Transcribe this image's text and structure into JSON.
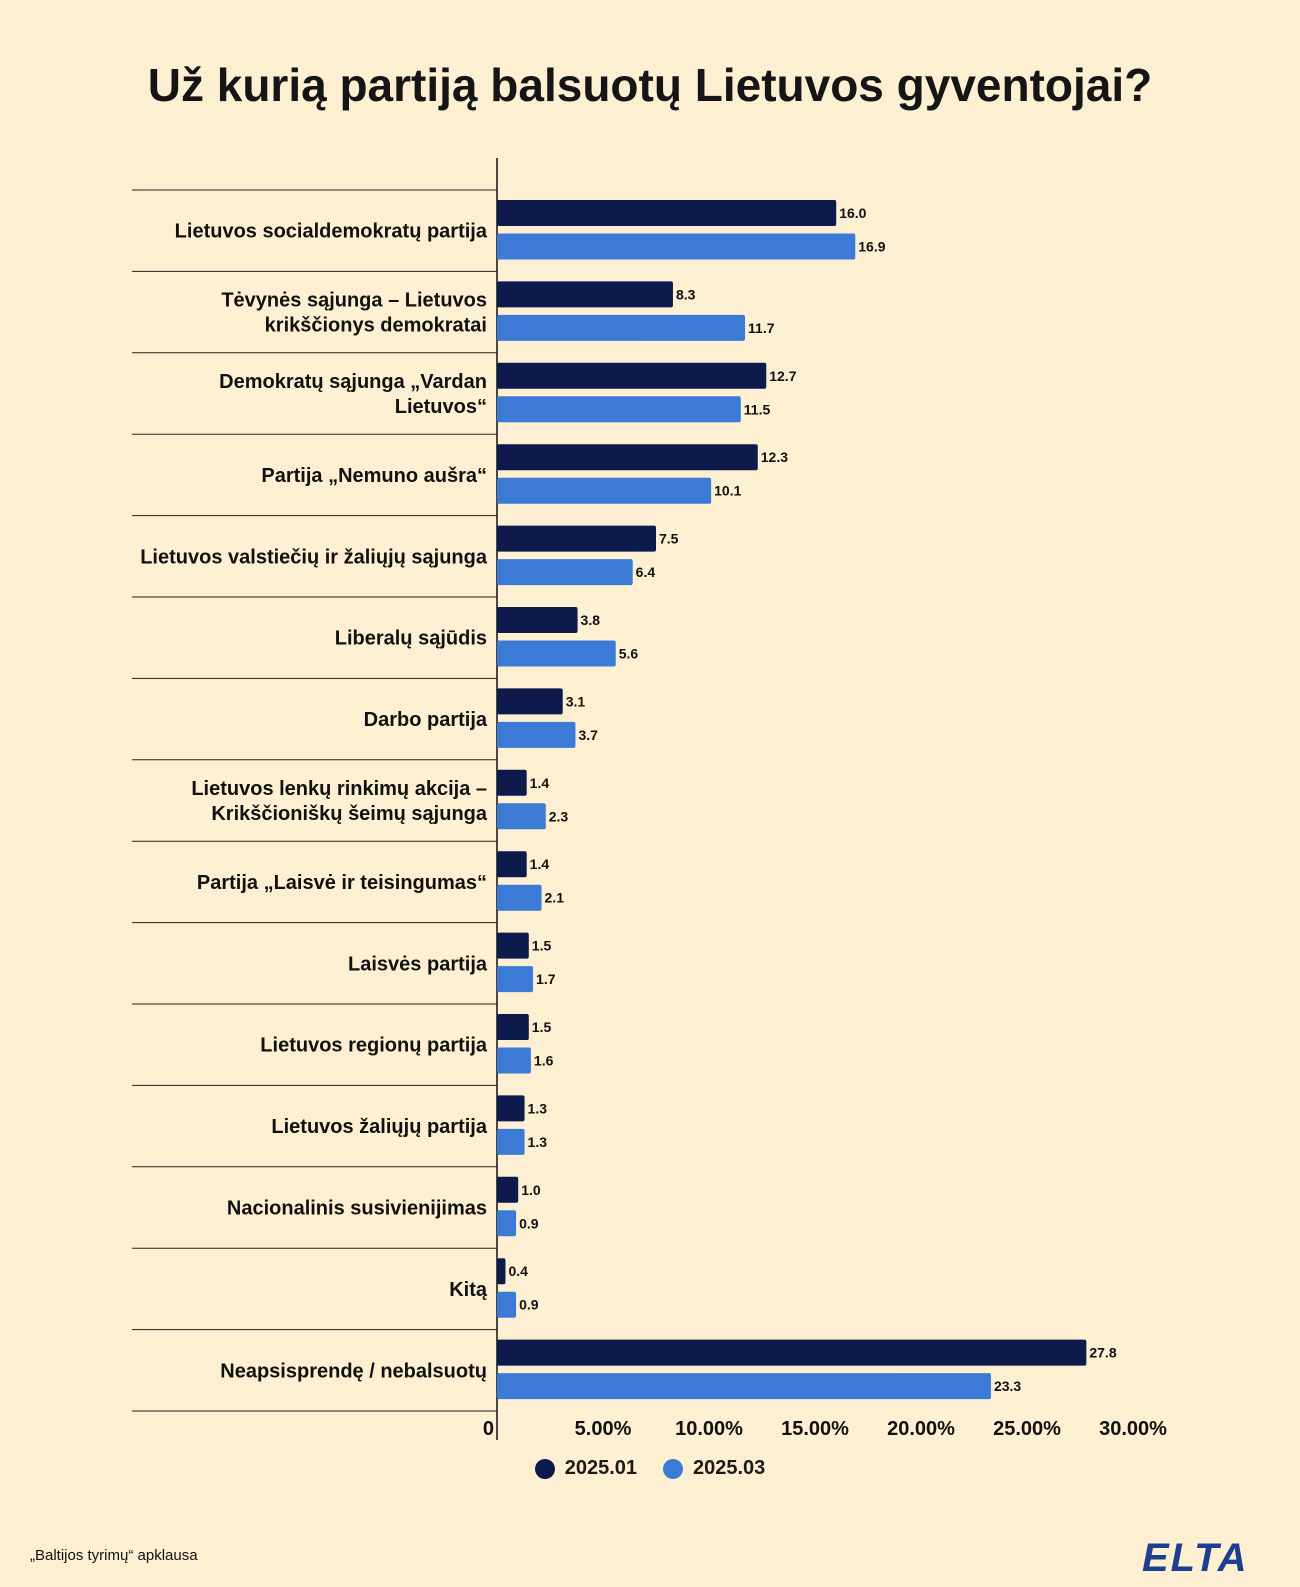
{
  "title": "Už kurią partiją balsuotų Lietuvos gyventojai?",
  "source_note": "„Baltijos tyrimų“ apklausa",
  "logo_text": "ELTA",
  "colors": {
    "series1": "#0d1a4c",
    "series2": "#3b7bd6",
    "background": "#fdefd2"
  },
  "chart_data": {
    "type": "bar",
    "orientation": "horizontal",
    "title": "Už kurią partiją balsuotų Lietuvos gyventojai?",
    "categories": [
      [
        "Lietuvos socialdemokratų partija"
      ],
      [
        "Tėvynės sąjunga – Lietuvos",
        "krikščionys demokratai"
      ],
      [
        "Demokratų sąjunga „Vardan",
        "Lietuvos“"
      ],
      [
        "Partija „Nemuno aušra“"
      ],
      [
        "Lietuvos valstiečių ir žaliųjų sąjunga"
      ],
      [
        "Liberalų sąjūdis"
      ],
      [
        "Darbo partija"
      ],
      [
        "Lietuvos lenkų rinkimų akcija –",
        "Krikščioniškų šeimų sąjunga"
      ],
      [
        "Partija „Laisvė ir teisingumas“"
      ],
      [
        "Laisvės partija"
      ],
      [
        "Lietuvos regionų partija"
      ],
      [
        "Lietuvos žaliųjų partija"
      ],
      [
        "Nacionalinis susivienijimas"
      ],
      [
        "Kitą"
      ],
      [
        "Neapsisprendę / nebalsuotų"
      ]
    ],
    "series": [
      {
        "name": "2025.01",
        "values": [
          16.0,
          8.3,
          12.7,
          12.3,
          7.5,
          3.8,
          3.1,
          1.4,
          1.4,
          1.5,
          1.5,
          1.3,
          1.0,
          0.4,
          27.8
        ],
        "labels": [
          "16.0",
          "8.3",
          "12.7",
          "12.3",
          "7.5",
          "3.8",
          "3.1",
          "1.4",
          "1.4",
          "1.5",
          "1.5",
          "1.3",
          "1.0",
          "0.4",
          "27.8"
        ]
      },
      {
        "name": "2025.03",
        "values": [
          16.9,
          11.7,
          11.5,
          10.1,
          6.4,
          5.6,
          3.7,
          2.3,
          2.1,
          1.7,
          1.6,
          1.3,
          0.9,
          0.9,
          23.3
        ],
        "labels": [
          "16.9",
          "11.7",
          "11.5",
          "10.1",
          "6.4",
          "5.6",
          "3.7",
          "2.3",
          "2.1",
          "1.7",
          "1.6",
          "1.3",
          "0.9",
          "0.9",
          "23.3"
        ]
      }
    ],
    "x_ticks": [
      "0",
      "5.00%",
      "10.00%",
      "15.00%",
      "20.00%",
      "25.00%",
      "30.00%"
    ],
    "x_tick_values": [
      0,
      5,
      10,
      15,
      20,
      25,
      30
    ],
    "xlim": [
      0,
      30
    ],
    "grid": false,
    "legend_position": "bottom"
  }
}
